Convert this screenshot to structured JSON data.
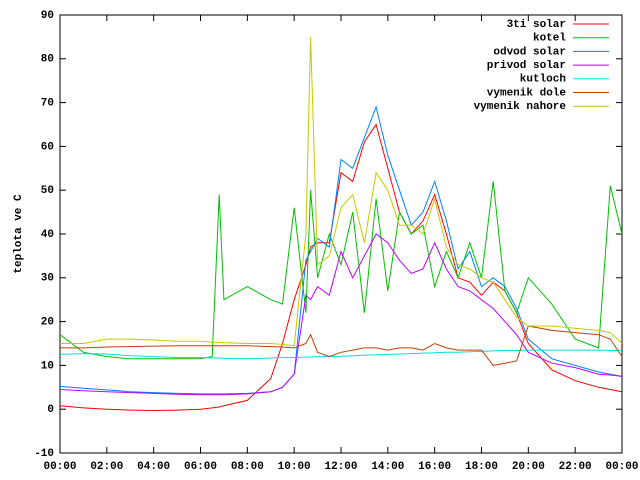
{
  "chart_data": {
    "type": "line",
    "ylabel": "teplota ve C",
    "x": [
      0,
      1,
      2,
      3,
      4,
      5,
      6,
      6.5,
      6.8,
      7,
      8,
      9,
      9.5,
      10,
      10.5,
      10.7,
      11,
      11.5,
      12,
      12.5,
      13,
      13.5,
      14,
      14.5,
      15,
      15.5,
      16,
      16.5,
      17,
      17.5,
      18,
      18.5,
      19,
      19.5,
      20,
      21,
      22,
      23,
      23.5,
      24
    ],
    "series": [
      {
        "name": "3ti solar",
        "color": "#ff0000",
        "values": [
          0.8,
          0.3,
          0,
          -0.2,
          -0.3,
          -0.2,
          0,
          0.3,
          0.5,
          0.8,
          2,
          7,
          15,
          25,
          33,
          37,
          38,
          38,
          54,
          52,
          61,
          65,
          55,
          45,
          40,
          43,
          49,
          40,
          30,
          29,
          26,
          29,
          27,
          22,
          15,
          9,
          6.5,
          5,
          4.5,
          4
        ]
      },
      {
        "name": "kotel",
        "color": "#00c000",
        "values": [
          17,
          13,
          12,
          11.5,
          11.5,
          11.5,
          11.5,
          12,
          49,
          25,
          28,
          25,
          24,
          46,
          22,
          50,
          30,
          40,
          33,
          45,
          22,
          48,
          27,
          45,
          40,
          42,
          28,
          36,
          30,
          38,
          30,
          52,
          27,
          22,
          30,
          24,
          16,
          14,
          51,
          40
        ]
      },
      {
        "name": "odvod solar",
        "color": "#0080ff",
        "values": [
          5.2,
          4.8,
          4.4,
          4,
          3.8,
          3.6,
          3.5,
          3.5,
          3.5,
          3.5,
          3.6,
          4,
          5,
          8,
          34,
          36,
          39,
          37,
          57,
          55,
          62,
          69,
          58,
          50,
          42,
          45,
          52,
          43,
          32,
          36,
          28,
          30,
          28,
          23,
          16,
          11.5,
          10,
          8.5,
          8,
          7.5
        ]
      },
      {
        "name": "privod solar",
        "color": "#c000ff",
        "values": [
          4.5,
          4.2,
          4,
          3.8,
          3.6,
          3.4,
          3.3,
          3.3,
          3.3,
          3.3,
          3.5,
          4,
          5,
          8,
          26,
          25,
          28,
          26,
          36,
          30,
          35,
          40,
          38,
          34,
          31,
          32,
          38,
          32,
          28,
          27,
          25,
          23,
          20,
          17,
          13,
          10.5,
          9.5,
          8,
          7.8,
          7.5
        ]
      },
      {
        "name": "kutloch",
        "color": "#00e0e0",
        "values": [
          12.5,
          12.7,
          12.6,
          12.2,
          12,
          11.8,
          11.8,
          11.7,
          11.7,
          11.6,
          11.5,
          11.7,
          11.8,
          11.8,
          11.9,
          11.9,
          12,
          12,
          12.1,
          12.2,
          12.3,
          12.4,
          12.5,
          12.6,
          12.7,
          12.8,
          12.9,
          13,
          13,
          13.1,
          13.2,
          13.3,
          13.4,
          13.4,
          13.5,
          13.5,
          13.5,
          13.5,
          13.4,
          13.4
        ]
      },
      {
        "name": "vymenik dole",
        "color": "#c04000",
        "values": [
          14,
          14,
          14.2,
          14.3,
          14.4,
          14.5,
          14.5,
          14.5,
          14.5,
          14.5,
          14.5,
          14.3,
          14.2,
          14,
          15,
          17,
          13,
          12,
          13,
          13.5,
          14,
          14,
          13.5,
          14,
          14,
          13.5,
          15,
          14,
          13.5,
          13.5,
          13.5,
          10,
          10.5,
          11,
          19,
          18,
          17.5,
          17,
          16,
          12
        ]
      },
      {
        "name": "vymenik nahore",
        "color": "#c8c800",
        "values": [
          15,
          15,
          16,
          16,
          15.8,
          15.5,
          15.5,
          15.3,
          15.3,
          15.2,
          15,
          15,
          14.8,
          14.5,
          40,
          85,
          33,
          35,
          46,
          49,
          38,
          54,
          50,
          42,
          42,
          40,
          48,
          37,
          33,
          32,
          30,
          29,
          25,
          21,
          19,
          19,
          18.5,
          18,
          17.5,
          15
        ]
      }
    ],
    "xlim": [
      0,
      24
    ],
    "xticks": [
      {
        "value": 0,
        "label": "00:00"
      },
      {
        "value": 2,
        "label": "02:00"
      },
      {
        "value": 4,
        "label": "04:00"
      },
      {
        "value": 6,
        "label": "06:00"
      },
      {
        "value": 8,
        "label": "08:00"
      },
      {
        "value": 10,
        "label": "10:00"
      },
      {
        "value": 12,
        "label": "12:00"
      },
      {
        "value": 14,
        "label": "14:00"
      },
      {
        "value": 16,
        "label": "16:00"
      },
      {
        "value": 18,
        "label": "18:00"
      },
      {
        "value": 20,
        "label": "20:00"
      },
      {
        "value": 22,
        "label": "22:00"
      },
      {
        "value": 24,
        "label": "00:00"
      }
    ],
    "ylim": [
      -10,
      90
    ],
    "yticks": [
      -10,
      0,
      10,
      20,
      30,
      40,
      50,
      60,
      70,
      80,
      90
    ],
    "grid": false,
    "legend": "top-right"
  }
}
